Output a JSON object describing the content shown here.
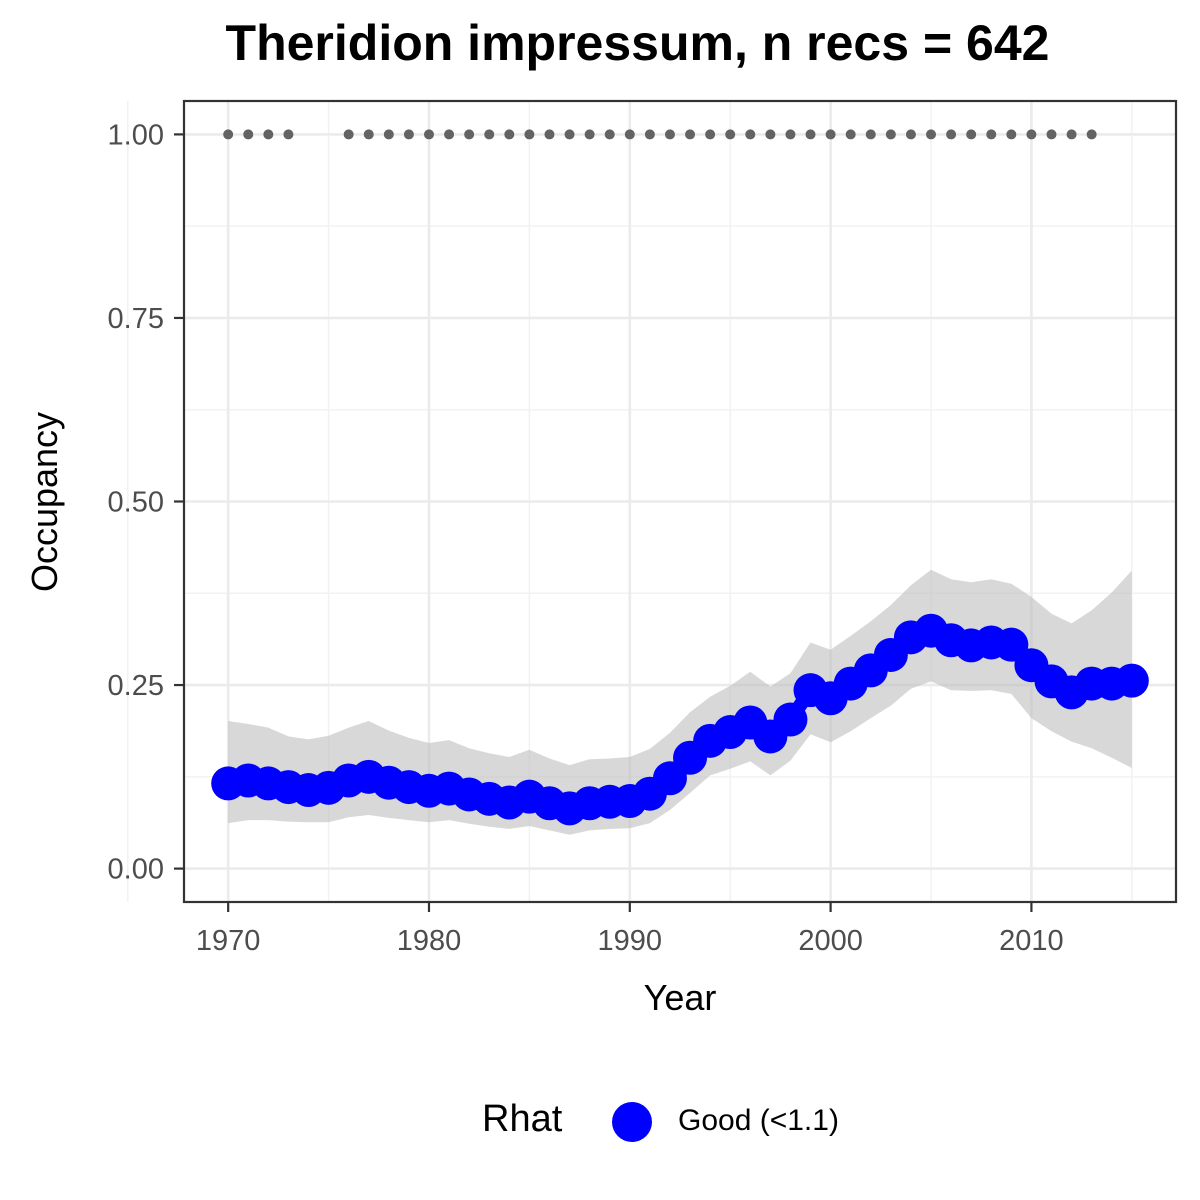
{
  "chart_data": {
    "type": "line",
    "title": "Theridion impressum, n recs = 642",
    "xlabel": "Year",
    "ylabel": "Occupancy",
    "xlim": [
      1967.8,
      1917.2
    ],
    "ylim": [
      -0.0455,
      1.0455
    ],
    "x_ticks": [
      1970,
      1980,
      1990,
      2000,
      2010
    ],
    "x_tick_labels": [
      "1970",
      "1980",
      "1990",
      "2000",
      "2010"
    ],
    "y_ticks": [
      0,
      0.25,
      0.5,
      0.75,
      1.0
    ],
    "y_tick_labels": [
      "0.00",
      "0.25",
      "0.50",
      "0.75",
      "1.00"
    ],
    "grid": true,
    "series": [
      {
        "type": "line-with-points",
        "x": [
          1970,
          1971,
          1972,
          1973,
          1974,
          1975,
          1976,
          1977,
          1978,
          1979,
          1980,
          1981,
          1982,
          1983,
          1984,
          1985,
          1986,
          1987,
          1988,
          1989,
          1990,
          1991,
          1992,
          1993,
          1994,
          1995,
          1996,
          1997,
          1998,
          1999,
          2000,
          2001,
          2002,
          2003,
          2004,
          2005,
          2006,
          2007,
          2008,
          2009,
          2010,
          2011,
          2012,
          2013,
          2014,
          2015
        ],
        "y": [
          0.116,
          0.12,
          0.116,
          0.111,
          0.107,
          0.11,
          0.12,
          0.125,
          0.117,
          0.111,
          0.106,
          0.109,
          0.101,
          0.095,
          0.09,
          0.098,
          0.089,
          0.082,
          0.089,
          0.091,
          0.092,
          0.102,
          0.123,
          0.151,
          0.174,
          0.186,
          0.199,
          0.18,
          0.203,
          0.243,
          0.232,
          0.252,
          0.27,
          0.291,
          0.315,
          0.324,
          0.311,
          0.304,
          0.308,
          0.305,
          0.277,
          0.255,
          0.24,
          0.252,
          0.252,
          0.256
        ],
        "lower": [
          0.062,
          0.066,
          0.066,
          0.064,
          0.063,
          0.063,
          0.07,
          0.073,
          0.069,
          0.066,
          0.063,
          0.066,
          0.061,
          0.057,
          0.054,
          0.058,
          0.052,
          0.046,
          0.052,
          0.054,
          0.055,
          0.062,
          0.08,
          0.103,
          0.127,
          0.136,
          0.146,
          0.127,
          0.147,
          0.183,
          0.172,
          0.187,
          0.205,
          0.222,
          0.245,
          0.255,
          0.243,
          0.242,
          0.243,
          0.238,
          0.205,
          0.187,
          0.173,
          0.164,
          0.151,
          0.137
        ],
        "upper": [
          0.201,
          0.197,
          0.192,
          0.18,
          0.176,
          0.181,
          0.192,
          0.201,
          0.188,
          0.178,
          0.171,
          0.175,
          0.164,
          0.157,
          0.152,
          0.162,
          0.15,
          0.141,
          0.149,
          0.15,
          0.152,
          0.163,
          0.185,
          0.213,
          0.234,
          0.249,
          0.268,
          0.248,
          0.266,
          0.308,
          0.298,
          0.317,
          0.337,
          0.359,
          0.386,
          0.407,
          0.394,
          0.39,
          0.394,
          0.388,
          0.37,
          0.347,
          0.334,
          0.352,
          0.376,
          0.406
        ],
        "color": "#0000ff",
        "ribbon_color": "#bebebe"
      },
      {
        "type": "points",
        "x": [
          1970,
          1971,
          1972,
          1973,
          1976,
          1977,
          1978,
          1979,
          1980,
          1981,
          1982,
          1983,
          1984,
          1985,
          1986,
          1987,
          1988,
          1989,
          1990,
          1991,
          1992,
          1993,
          1994,
          1995,
          1996,
          1997,
          1998,
          1999,
          2000,
          2001,
          2002,
          2003,
          2004,
          2005,
          2006,
          2007,
          2008,
          2009,
          2010,
          2011,
          2012,
          2013
        ],
        "y": [
          1,
          1,
          1,
          1,
          1,
          1,
          1,
          1,
          1,
          1,
          1,
          1,
          1,
          1,
          1,
          1,
          1,
          1,
          1,
          1,
          1,
          1,
          1,
          1,
          1,
          1,
          1,
          1,
          1,
          1,
          1,
          1,
          1,
          1,
          1,
          1,
          1,
          1,
          1,
          1,
          1,
          1
        ],
        "color": "#636363"
      }
    ],
    "legend": {
      "title": "Rhat",
      "position": "bottom",
      "entries": [
        {
          "label": "Good (<1.1)",
          "color": "#0000ff"
        }
      ]
    }
  }
}
